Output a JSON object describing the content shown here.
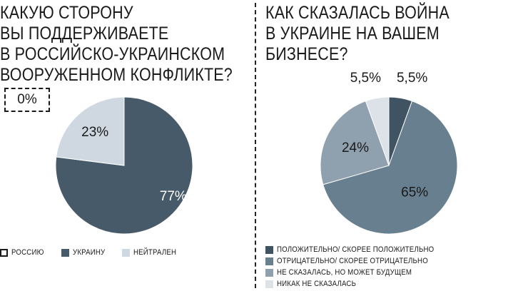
{
  "colors": {
    "ukraine": "#475a6a",
    "neutral": "#cfd7e0",
    "positive": "#3f5363",
    "negative": "#687f8f",
    "not_yet": "#8fa1ae",
    "none": "#dce2e8"
  },
  "chart_data": [
    {
      "type": "pie",
      "title_lines": [
        "КАКУЮ СТОРОНУ",
        "ВЫ ПОДДЕРЖИВАЕТЕ",
        "В РОССИЙСКО-УКРАИНСКОМ",
        "ВООРУЖЕННОМ КОНФЛИКТЕ?"
      ],
      "slices": [
        {
          "label": "РОССИЮ",
          "value": 0,
          "display": "0%",
          "color": "#ffffff",
          "style": "dashed"
        },
        {
          "label": "УКРАИНУ",
          "value": 77,
          "display": "77%",
          "color": "#475a6a",
          "text_color": "#ffffff"
        },
        {
          "label": "НЕЙТРАЛЕН",
          "value": 23,
          "display": "23%",
          "color": "#cfd7e0",
          "text_color": "#1a1a1a"
        }
      ],
      "legend_placement": "bottom"
    },
    {
      "type": "pie",
      "title_lines": [
        "КАК СКАЗАЛАСЬ ВОЙНА",
        "В УКРАИНЕ НА ВАШЕМ",
        "БИЗНЕСЕ?"
      ],
      "slices": [
        {
          "label": "ПОЛОЖИТЕЛЬНО/ СКОРЕЕ ПОЛОЖИТЕЛЬНО",
          "value": 5.5,
          "display": "5,5%",
          "color": "#3f5363",
          "text_color": "#1a1a1a",
          "outside": true
        },
        {
          "label": "ОТРИЦАТЕЛЬНО/ СКОРЕЕ ОТРИЦАТЕЛЬНО",
          "value": 65,
          "display": "65%",
          "color": "#687f8f",
          "text_color": "#1a1a1a"
        },
        {
          "label": "НЕ СКАЗАЛАСЬ, НО МОЖЕТ БУДУЩЕМ",
          "value": 24,
          "display": "24%",
          "color": "#8fa1ae",
          "text_color": "#1a1a1a"
        },
        {
          "label": "НИКАК НЕ СКАЗАЛАСЬ",
          "value": 5.5,
          "display": "5,5%",
          "color": "#dce2e8",
          "text_color": "#1a1a1a",
          "outside": true
        }
      ],
      "legend_placement": "bottom"
    }
  ]
}
